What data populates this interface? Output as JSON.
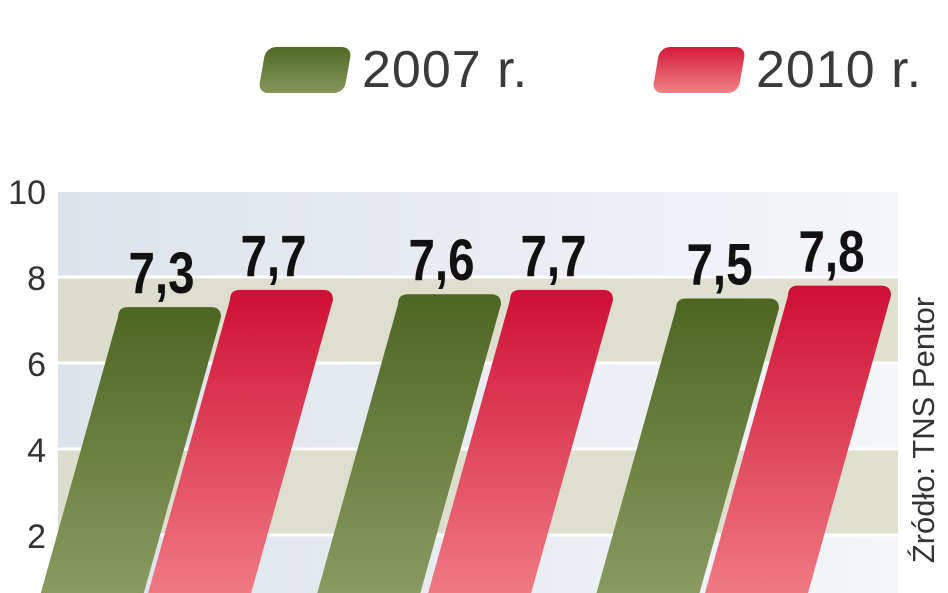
{
  "legend": {
    "items": [
      {
        "label": "2007 r.",
        "color": "#5f7a2c"
      },
      {
        "label": "2010 r.",
        "color": "#d42a45"
      }
    ]
  },
  "source": "Źródło: TNS Pentor",
  "chart_data": {
    "type": "bar",
    "categories": [
      "",
      "",
      ""
    ],
    "series": [
      {
        "name": "2007 r.",
        "values": [
          7.3,
          7.6,
          7.5
        ],
        "labels": [
          "7,3",
          "7,6",
          "7,5"
        ],
        "color": "#5f7a2c"
      },
      {
        "name": "2010 r.",
        "values": [
          7.7,
          7.7,
          7.8
        ],
        "labels": [
          "7,7",
          "7,7",
          "7,8"
        ],
        "color": "#d42a45"
      }
    ],
    "yticks": [
      "2",
      "4",
      "6",
      "8",
      "10"
    ],
    "ylim": [
      0,
      10
    ],
    "grid": true,
    "legend": "top-right",
    "title": "",
    "xlabel": "",
    "ylabel": ""
  }
}
